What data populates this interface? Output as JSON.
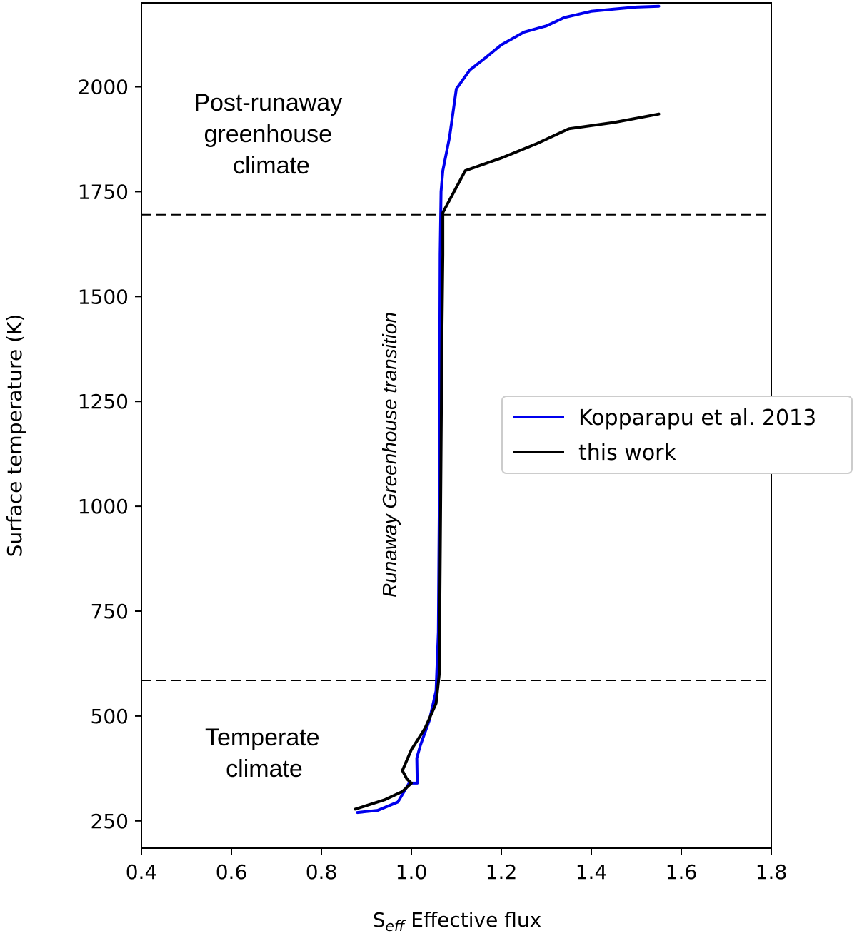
{
  "chart_data": {
    "type": "line",
    "xlabel_main": "S",
    "xlabel_sub": "eff",
    "xlabel_rest": " Effective flux",
    "ylabel": "Surface temperature (K)",
    "xlim": [
      0.4,
      1.8
    ],
    "ylim": [
      185,
      2200
    ],
    "xticks": [
      0.4,
      0.6,
      0.8,
      1.0,
      1.2,
      1.4,
      1.6,
      1.8
    ],
    "xtick_labels": [
      "0.4",
      "0.6",
      "0.8",
      "1.0",
      "1.2",
      "1.4",
      "1.6",
      "1.8"
    ],
    "yticks": [
      250,
      500,
      750,
      1000,
      1250,
      1500,
      1750,
      2000
    ],
    "ytick_labels": [
      "250",
      "500",
      "750",
      "1000",
      "1250",
      "1500",
      "1750",
      "2000"
    ],
    "hlines": [
      1695,
      585
    ],
    "grid": false,
    "legend_position": "center-right",
    "series": [
      {
        "name": "Kopparapu et al. 2013",
        "color": "#0000ee",
        "x": [
          0.88,
          0.925,
          0.97,
          0.995,
          1.013,
          1.012,
          1.02,
          1.04,
          1.055,
          1.06,
          1.062,
          1.063,
          1.064,
          1.066,
          1.07,
          1.085,
          1.1,
          1.13,
          1.16,
          1.2,
          1.25,
          1.3,
          1.34,
          1.4,
          1.45,
          1.5,
          1.55
        ],
        "y": [
          270,
          275,
          295,
          340,
          340,
          400,
          430,
          490,
          560,
          700,
          1000,
          1300,
          1600,
          1750,
          1800,
          1880,
          1995,
          2040,
          2065,
          2100,
          2130,
          2145,
          2165,
          2180,
          2185,
          2190,
          2192
        ]
      },
      {
        "name": "this work",
        "color": "#000000",
        "x": [
          0.875,
          0.94,
          0.98,
          1.0,
          0.99,
          0.98,
          1.0,
          1.03,
          1.055,
          1.062,
          1.065,
          1.068,
          1.07,
          1.07,
          1.12,
          1.2,
          1.28,
          1.35,
          1.45,
          1.55
        ],
        "y": [
          278,
          300,
          320,
          340,
          350,
          370,
          420,
          470,
          530,
          600,
          1000,
          1400,
          1600,
          1700,
          1800,
          1830,
          1865,
          1900,
          1915,
          1935
        ]
      }
    ],
    "annotations": {
      "post_runaway": [
        "Post-runaway",
        "greenhouse",
        "climate"
      ],
      "temperate": [
        "Temperate",
        "climate"
      ],
      "transition": "Runaway Greenhouse transition"
    }
  }
}
